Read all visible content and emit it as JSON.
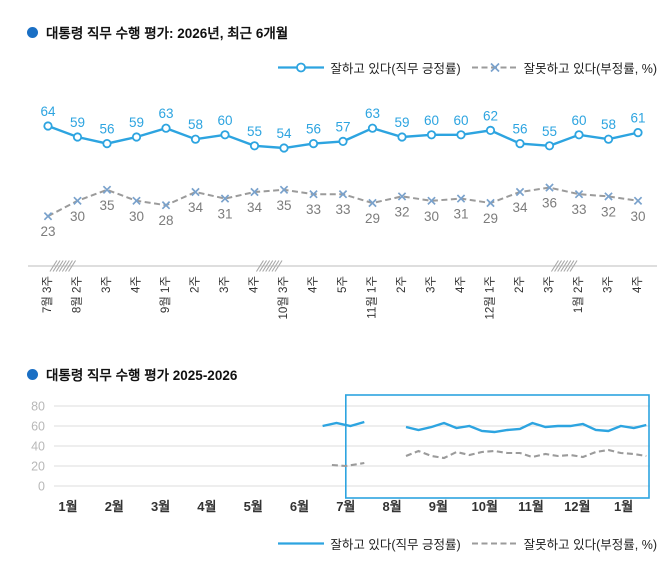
{
  "colors": {
    "bullet": "#1a6fc4",
    "approve": "#2da4e0",
    "disapprove_line": "#9b9b9b",
    "disapprove_marker": "#7aa2cc",
    "approve_label": "#2da4e0",
    "disapprove_label": "#7c7c7c",
    "axis": "#c9c9c9",
    "break_mark": "#a8a8a8",
    "grid": "#dedede",
    "ytick_label": "#b8b8b8",
    "xtick_label": "#333333",
    "highlight_box": "#2da4e0"
  },
  "chart_data": [
    {
      "type": "line",
      "title": "대통령 직무 수행 평가: 2026년, 최근 6개월",
      "categories": [
        "7월 3주",
        "8월 2주",
        "3주",
        "4주",
        "9월 1주",
        "2주",
        "3주",
        "4주",
        "10월 3주",
        "4주",
        "5주",
        "11월 1주",
        "2주",
        "3주",
        "4주",
        "12월 1주",
        "2주",
        "3주",
        "1월 2주",
        "3주",
        "4주"
      ],
      "series": [
        {
          "name": "잘하고 있다(직무 긍정률)",
          "style": "solid-circle",
          "values": [
            64,
            59,
            56,
            59,
            63,
            58,
            60,
            55,
            54,
            56,
            57,
            63,
            59,
            60,
            60,
            62,
            56,
            55,
            60,
            58,
            61
          ]
        },
        {
          "name": "잘못하고 있다(부정률, %)",
          "style": "dashed-x",
          "values": [
            23,
            30,
            35,
            30,
            28,
            34,
            31,
            34,
            35,
            33,
            33,
            29,
            32,
            30,
            31,
            29,
            34,
            36,
            33,
            32,
            30
          ]
        }
      ],
      "axis_breaks_after_index": [
        0,
        7,
        17
      ],
      "data_labels": true,
      "grid": false,
      "legend_position": "top-right"
    },
    {
      "type": "line",
      "title": "대통령 직무 수행 평가 2025-2026",
      "x_axis_labels": [
        "1월",
        "2월",
        "3월",
        "4월",
        "5월",
        "6월",
        "7월",
        "8월",
        "9월",
        "10월",
        "11월",
        "12월",
        "1월"
      ],
      "ylim": [
        0,
        80
      ],
      "yticks": [
        0,
        20,
        40,
        60,
        80
      ],
      "series": [
        {
          "name": "잘하고 있다(직무 긍정률)",
          "style": "solid",
          "segments": [
            {
              "x_month": [
                5.5,
                5.8,
                6.1,
                6.4
              ],
              "values": [
                60,
                63,
                60,
                64
              ]
            },
            {
              "x_month": [
                7.3,
                7.57,
                7.85,
                8.12,
                8.39,
                8.67,
                8.94,
                9.21,
                9.49,
                9.76,
                10.03,
                10.31,
                10.58,
                10.85,
                11.12,
                11.4,
                11.67,
                11.94,
                12.22,
                12.49
              ],
              "values": [
                59,
                56,
                59,
                63,
                58,
                60,
                55,
                54,
                56,
                57,
                63,
                59,
                60,
                60,
                62,
                56,
                55,
                60,
                58,
                61
              ]
            }
          ]
        },
        {
          "name": "잘못하고 있다(부정률, %)",
          "style": "dashed",
          "segments": [
            {
              "x_month": [
                5.7,
                6.0,
                6.4
              ],
              "values": [
                21,
                20,
                23
              ]
            },
            {
              "x_month": [
                7.3,
                7.57,
                7.85,
                8.12,
                8.39,
                8.67,
                8.94,
                9.21,
                9.49,
                9.76,
                10.03,
                10.31,
                10.58,
                10.85,
                11.12,
                11.4,
                11.67,
                11.94,
                12.22,
                12.49
              ],
              "values": [
                30,
                35,
                30,
                28,
                34,
                31,
                34,
                35,
                33,
                33,
                29,
                32,
                30,
                31,
                29,
                34,
                36,
                33,
                32,
                30
              ]
            }
          ]
        }
      ],
      "highlight_box": {
        "from_month_index": 6,
        "to_right_edge": true
      },
      "grid": true,
      "legend_position": "bottom-right"
    }
  ]
}
